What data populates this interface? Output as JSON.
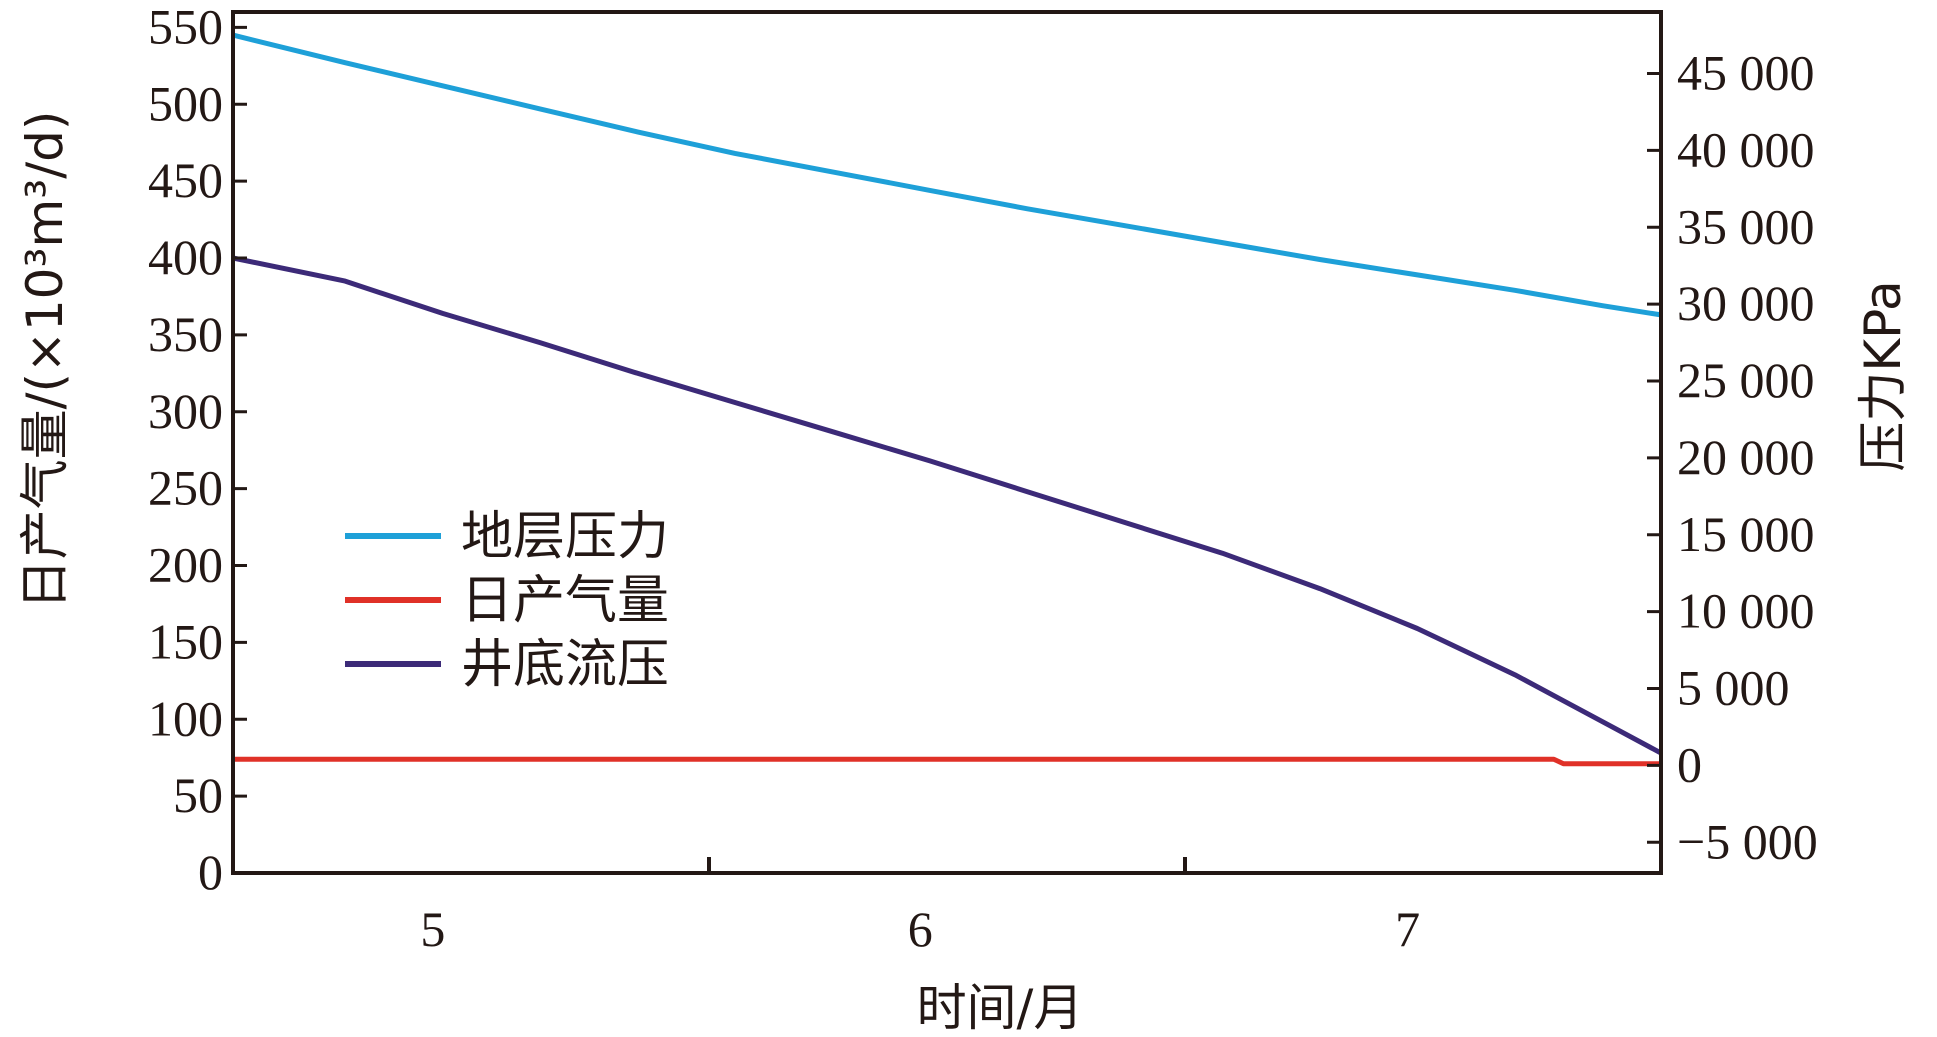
{
  "chart_data": {
    "type": "line",
    "xlabel": "时间/月",
    "ylabel_left": "日产气量/(×10³m³/d)",
    "ylabel_right": "压力KPa",
    "x_ticks": [
      "5",
      "6",
      "7"
    ],
    "y_left_ticks": [
      "550",
      "500",
      "450",
      "400",
      "350",
      "300",
      "250",
      "200",
      "150",
      "100",
      "50",
      "0"
    ],
    "y_right_ticks": [
      "45 000",
      "40 000",
      "35 000",
      "30 000",
      "25 000",
      "20 000",
      "15 000",
      "10 000",
      "5 000",
      "0",
      "−5 000"
    ],
    "xlim": [
      4.57,
      7.5
    ],
    "ylim_left": [
      0,
      560
    ],
    "ylim_right": [
      -7000,
      49000
    ],
    "legend_position": "center-left",
    "series": [
      {
        "name": "地层压力",
        "color": "#1ea0d8",
        "axis": "right",
        "x": [
          4.57,
          4.8,
          5.0,
          5.2,
          5.4,
          5.6,
          5.8,
          6.0,
          6.2,
          6.4,
          6.6,
          6.8,
          7.0,
          7.2,
          7.38,
          7.5
        ],
        "y": [
          47500,
          45700,
          44200,
          42700,
          41200,
          39800,
          38600,
          37400,
          36200,
          35100,
          34000,
          32900,
          31900,
          30900,
          29900,
          29300
        ]
      },
      {
        "name": "日产气量",
        "color": "#e03128",
        "axis": "left",
        "x": [
          4.57,
          5.0,
          5.5,
          6.0,
          6.5,
          7.0,
          7.2,
          7.28,
          7.3,
          7.4,
          7.5
        ],
        "y": [
          74,
          74,
          74,
          74,
          74,
          74,
          74,
          74,
          71,
          71,
          71
        ]
      },
      {
        "name": "井底流压",
        "color": "#3c2a78",
        "axis": "right",
        "x": [
          4.57,
          4.8,
          5.0,
          5.2,
          5.4,
          5.6,
          5.8,
          6.0,
          6.2,
          6.4,
          6.6,
          6.8,
          7.0,
          7.1,
          7.2,
          7.3,
          7.4,
          7.5
        ],
        "y": [
          33000,
          31500,
          29400,
          27500,
          25500,
          23600,
          21700,
          19800,
          17800,
          15800,
          13800,
          11500,
          8900,
          7400,
          5900,
          4200,
          2500,
          800
        ]
      }
    ]
  }
}
